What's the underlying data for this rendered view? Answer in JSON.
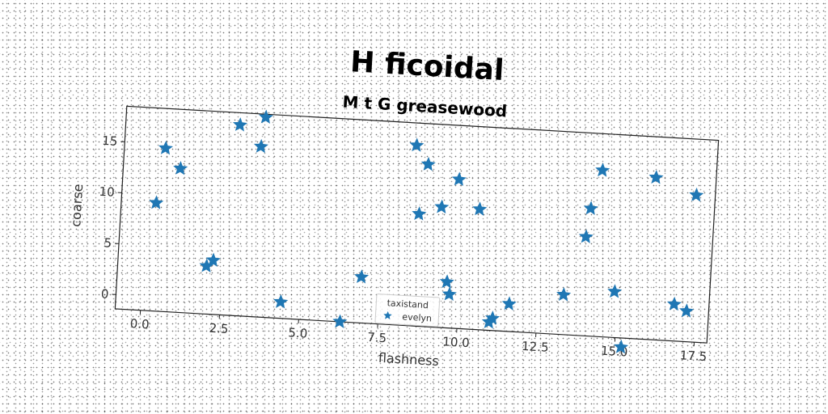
{
  "chart_data": {
    "type": "scatter",
    "title": "H ficoidal",
    "subtitle": "M t G greasewood",
    "xlabel": "flashness",
    "ylabel": "coarse",
    "xlim": [
      -0.8,
      17.9
    ],
    "ylim": [
      -1.4,
      18.5
    ],
    "xticks": [
      "0.0",
      "2.5",
      "5.0",
      "7.5",
      "10.0",
      "12.5",
      "15.0",
      "17.5"
    ],
    "yticks": [
      "0",
      "5",
      "10",
      "15"
    ],
    "legend": {
      "title": "taxistand",
      "entries": [
        "evelyn"
      ],
      "placement": "lower-center"
    },
    "marker": "star",
    "color": "#1f77b4",
    "series": [
      {
        "name": "evelyn",
        "x": [
          0.3,
          0.5,
          1.0,
          2.0,
          2.2,
          2.8,
          3.5,
          3.6,
          4.4,
          6.3,
          6.9,
          8.4,
          8.6,
          8.8,
          9.3,
          9.6,
          9.7,
          9.8,
          10.5,
          11.0,
          11.1,
          11.6,
          13.3,
          13.9,
          14.0,
          14.3,
          14.9,
          15.2,
          16.0,
          16.8,
          17.2,
          17.3
        ],
        "y": [
          9.2,
          14.6,
          12.7,
          3.3,
          3.9,
          17.3,
          15.3,
          18.2,
          0.2,
          -1.4,
          3.1,
          16.3,
          9.6,
          14.5,
          10.4,
          3.1,
          1.9,
          13.2,
          10.4,
          -0.6,
          -0.2,
          1.3,
          2.5,
          8.3,
          11.1,
          14.9,
          3.1,
          -2.3,
          14.5,
          2.2,
          1.6,
          13.0
        ]
      }
    ]
  }
}
